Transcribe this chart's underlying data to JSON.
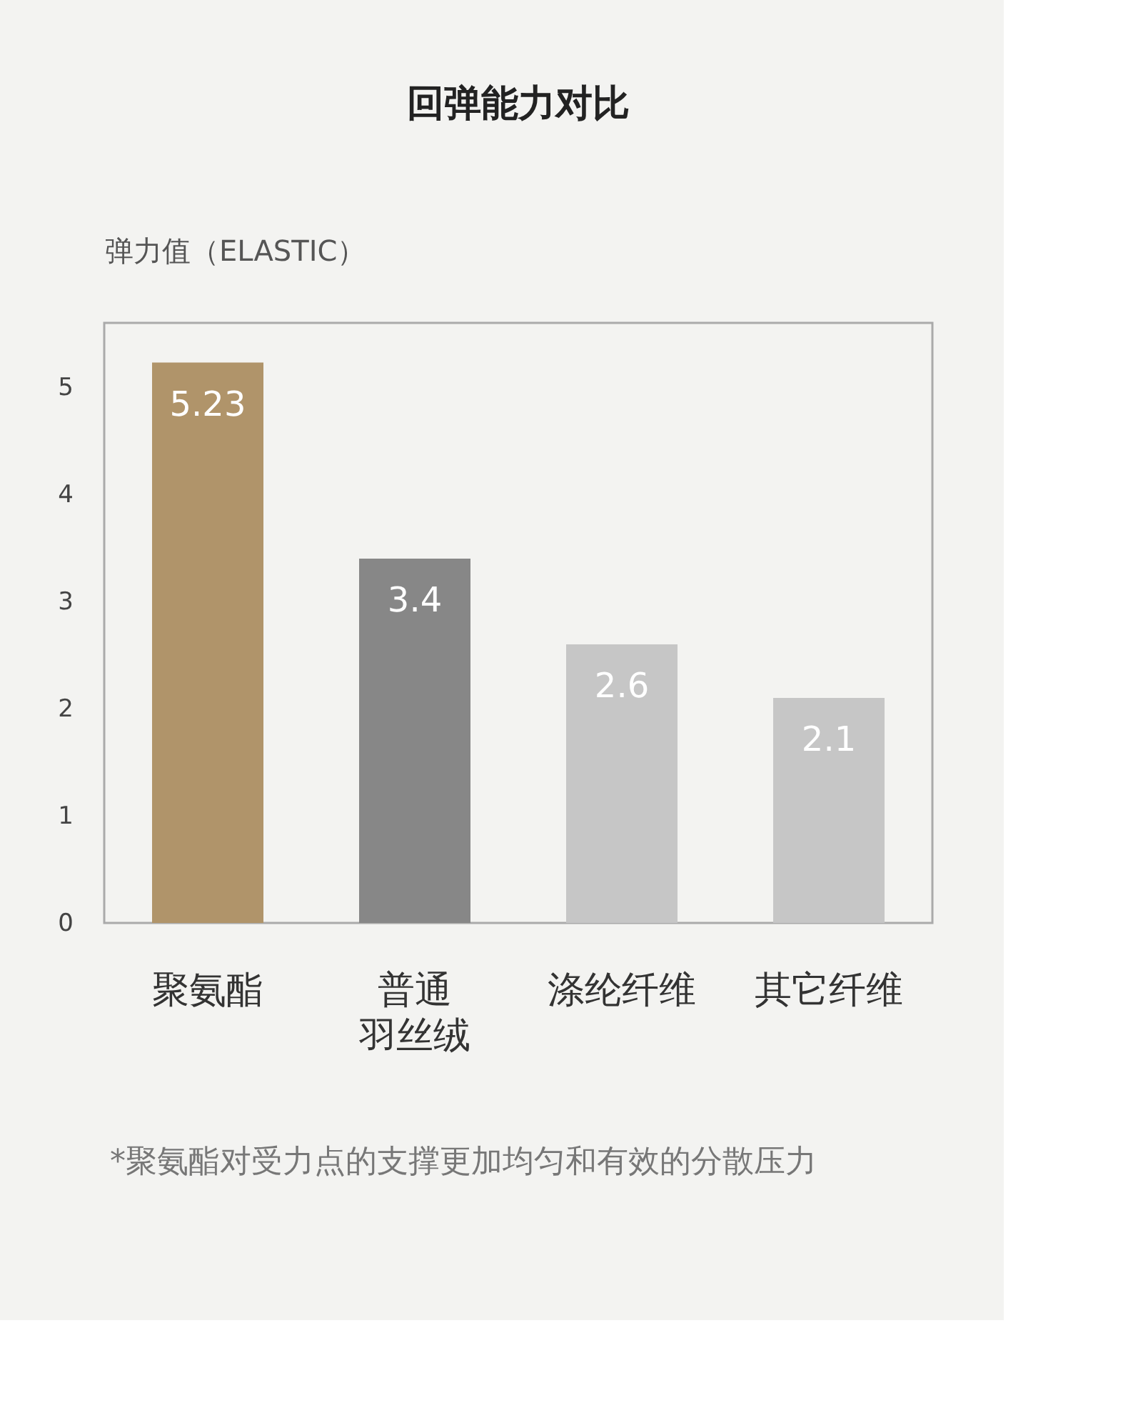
{
  "chart_data": {
    "type": "bar",
    "title": "回弹能力对比",
    "ylabel": "弹力值（ELASTIC）",
    "categories": [
      "聚氨酯",
      "普通羽丝绒",
      "涤纶纤维",
      "其它纤维"
    ],
    "values": [
      5.23,
      3.4,
      2.6,
      2.1
    ],
    "colors": [
      "#b0946a",
      "#878787",
      "#c6c6c6",
      "#c6c6c6"
    ],
    "ylim": [
      0,
      5.6
    ],
    "yticks": [
      0,
      1,
      2,
      3,
      4,
      5
    ],
    "grid": false,
    "data_labels": true,
    "annotations": [
      "*聚氨酯对受力点的支撑更加均匀和有效的分散压力"
    ]
  }
}
